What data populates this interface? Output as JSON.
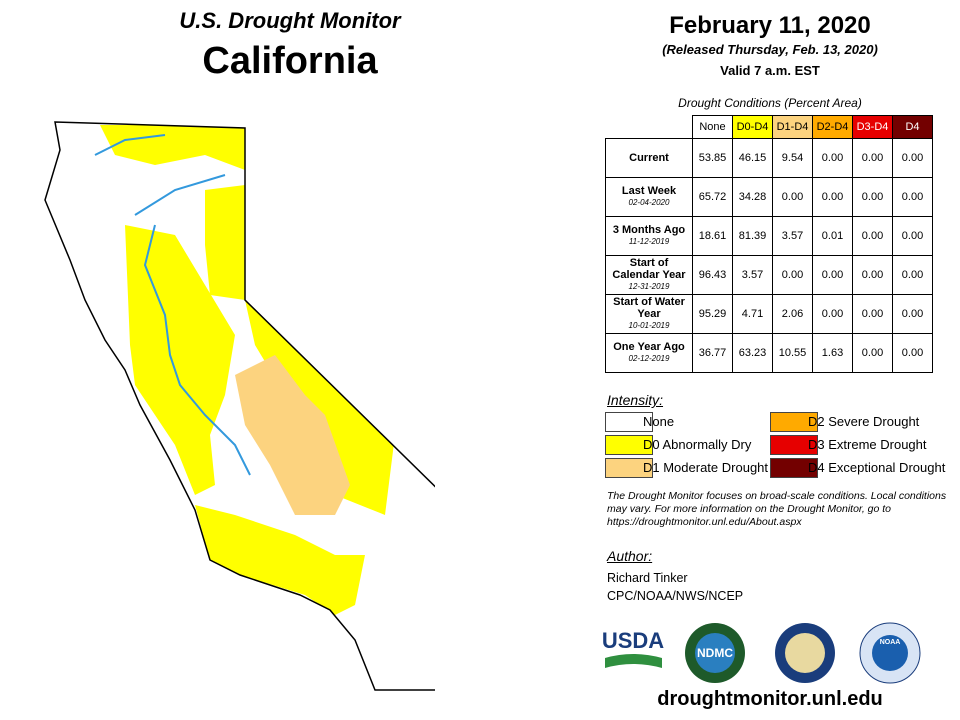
{
  "header": {
    "title": "U.S. Drought Monitor",
    "state": "California",
    "date": "February 11, 2020",
    "released": "(Released Thursday, Feb. 13, 2020)",
    "valid": "Valid 7 a.m. EST"
  },
  "table": {
    "caption": "Drought Conditions (Percent Area)",
    "columns": [
      {
        "label": "None",
        "color": "#ffffff",
        "text_color": "#000000"
      },
      {
        "label": "D0-D4",
        "color": "#ffff00",
        "text_color": "#000000"
      },
      {
        "label": "D1-D4",
        "color": "#fcd37f",
        "text_color": "#000000"
      },
      {
        "label": "D2-D4",
        "color": "#ffaa00",
        "text_color": "#000000"
      },
      {
        "label": "D3-D4",
        "color": "#e60000",
        "text_color": "#ffffff"
      },
      {
        "label": "D4",
        "color": "#730000",
        "text_color": "#ffffff"
      }
    ],
    "rows": [
      {
        "label": "Current",
        "values": [
          "53.85",
          "46.15",
          "9.54",
          "0.00",
          "0.00",
          "0.00"
        ]
      },
      {
        "label": "Last Week",
        "date": "02-04-2020",
        "values": [
          "65.72",
          "34.28",
          "0.00",
          "0.00",
          "0.00",
          "0.00"
        ]
      },
      {
        "label": "3 Months Ago",
        "date": "11-12-2019",
        "values": [
          "18.61",
          "81.39",
          "3.57",
          "0.01",
          "0.00",
          "0.00"
        ]
      },
      {
        "label": "Start of Calendar Year",
        "date": "12-31-2019",
        "values": [
          "96.43",
          "3.57",
          "0.00",
          "0.00",
          "0.00",
          "0.00"
        ]
      },
      {
        "label": "Start of Water Year",
        "date": "10-01-2019",
        "values": [
          "95.29",
          "4.71",
          "2.06",
          "0.00",
          "0.00",
          "0.00"
        ]
      },
      {
        "label": "One Year Ago",
        "date": "02-12-2019",
        "values": [
          "36.77",
          "63.23",
          "10.55",
          "1.63",
          "0.00",
          "0.00"
        ]
      }
    ]
  },
  "legend": {
    "title": "Intensity:",
    "items": [
      {
        "label": "None",
        "color": "#ffffff"
      },
      {
        "label": "D0 Abnormally Dry",
        "color": "#ffff00"
      },
      {
        "label": "D1 Moderate Drought",
        "color": "#fcd37f"
      },
      {
        "label": "D2 Severe Drought",
        "color": "#ffaa00"
      },
      {
        "label": "D3 Extreme Drought",
        "color": "#e60000"
      },
      {
        "label": "D4 Exceptional Drought",
        "color": "#730000"
      }
    ]
  },
  "note": "The Drought Monitor focuses on broad-scale conditions. Local conditions may vary. For more information on the Drought Monitor, go to https://droughtmonitor.unl.edu/About.aspx",
  "author": {
    "title": "Author:",
    "lines": [
      "Richard Tinker",
      "CPC/NOAA/NWS/NCEP"
    ]
  },
  "logos": [
    "USDA",
    "NDMC",
    "NOAA"
  ],
  "footer": "droughtmonitor.unl.edu"
}
